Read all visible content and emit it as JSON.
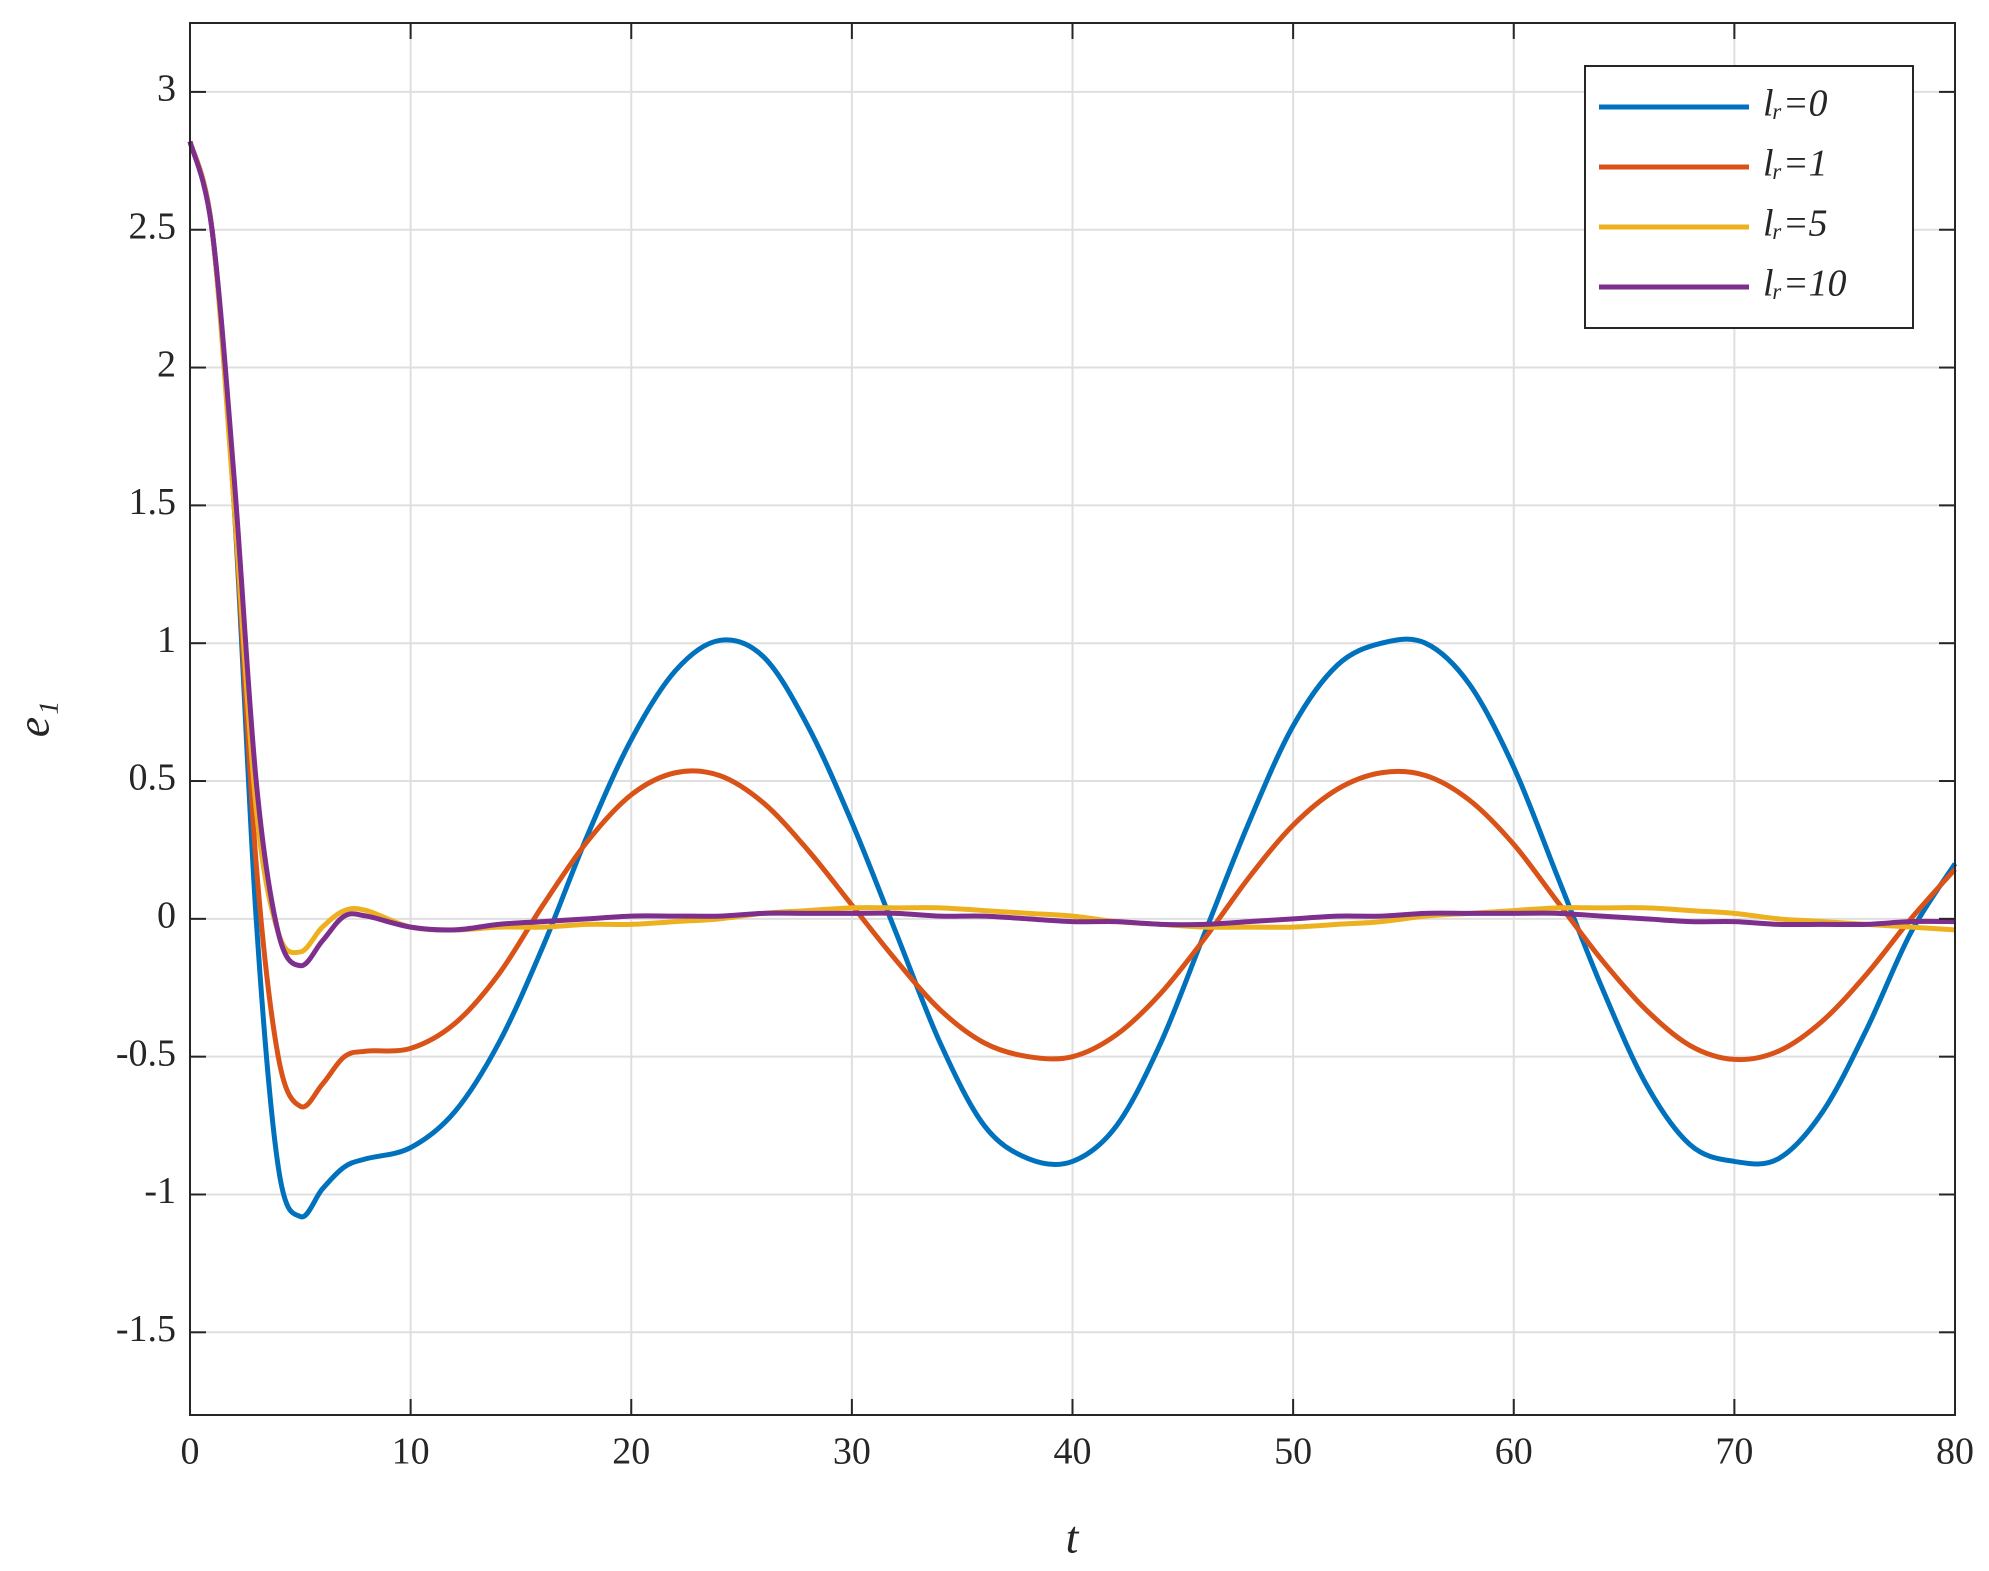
{
  "chart_data": {
    "type": "line",
    "xlabel": "t",
    "ylabel": "e₁",
    "x": [
      0,
      1,
      2,
      3,
      4,
      5,
      6,
      7,
      8,
      10,
      12,
      14,
      16,
      18,
      20,
      22,
      24,
      26,
      28,
      30,
      32,
      34,
      36,
      38,
      40,
      42,
      44,
      46,
      48,
      50,
      52,
      54,
      56,
      58,
      60,
      62,
      64,
      66,
      68,
      70,
      72,
      74,
      76,
      78,
      80
    ],
    "series": [
      {
        "name": "lᵣ=0",
        "color": "#0072bd",
        "values": [
          2.82,
          2.5,
          1.5,
          0.0,
          -0.9,
          -1.08,
          -0.98,
          -0.9,
          -0.87,
          -0.83,
          -0.7,
          -0.45,
          -0.1,
          0.3,
          0.65,
          0.9,
          1.01,
          0.95,
          0.7,
          0.35,
          -0.05,
          -0.45,
          -0.75,
          -0.87,
          -0.88,
          -0.75,
          -0.45,
          -0.05,
          0.35,
          0.7,
          0.92,
          1.0,
          1.0,
          0.85,
          0.55,
          0.15,
          -0.25,
          -0.6,
          -0.82,
          -0.88,
          -0.87,
          -0.7,
          -0.4,
          -0.05,
          0.2
        ]
      },
      {
        "name": "lᵣ=1",
        "color": "#d95319",
        "values": [
          2.82,
          2.5,
          1.5,
          0.2,
          -0.5,
          -0.68,
          -0.6,
          -0.5,
          -0.48,
          -0.47,
          -0.38,
          -0.2,
          0.05,
          0.28,
          0.45,
          0.53,
          0.52,
          0.42,
          0.25,
          0.05,
          -0.15,
          -0.33,
          -0.45,
          -0.5,
          -0.5,
          -0.42,
          -0.27,
          -0.07,
          0.15,
          0.34,
          0.47,
          0.53,
          0.52,
          0.43,
          0.27,
          0.06,
          -0.15,
          -0.33,
          -0.46,
          -0.51,
          -0.48,
          -0.37,
          -0.2,
          0.0,
          0.18
        ]
      },
      {
        "name": "lᵣ=5",
        "color": "#edb120",
        "values": [
          2.82,
          2.5,
          1.5,
          0.4,
          -0.05,
          -0.12,
          -0.03,
          0.03,
          0.03,
          -0.03,
          -0.04,
          -0.03,
          -0.03,
          -0.02,
          -0.02,
          -0.01,
          0.0,
          0.02,
          0.03,
          0.04,
          0.04,
          0.04,
          0.03,
          0.02,
          0.01,
          -0.01,
          -0.02,
          -0.03,
          -0.03,
          -0.03,
          -0.02,
          -0.01,
          0.01,
          0.02,
          0.03,
          0.04,
          0.04,
          0.04,
          0.03,
          0.02,
          0.0,
          -0.01,
          -0.02,
          -0.03,
          -0.04
        ]
      },
      {
        "name": "lᵣ=10",
        "color": "#7e2f8e",
        "values": [
          2.82,
          2.5,
          1.6,
          0.5,
          -0.05,
          -0.17,
          -0.08,
          0.01,
          0.01,
          -0.03,
          -0.04,
          -0.02,
          -0.01,
          0.0,
          0.01,
          0.01,
          0.01,
          0.02,
          0.02,
          0.02,
          0.02,
          0.01,
          0.01,
          0.0,
          -0.01,
          -0.01,
          -0.02,
          -0.02,
          -0.01,
          0.0,
          0.01,
          0.01,
          0.02,
          0.02,
          0.02,
          0.02,
          0.01,
          0.0,
          -0.01,
          -0.01,
          -0.02,
          -0.02,
          -0.02,
          -0.01,
          -0.01
        ]
      }
    ],
    "xlim": [
      0,
      80
    ],
    "xticks": [
      0,
      10,
      20,
      30,
      40,
      50,
      60,
      70,
      80
    ],
    "ylim": [
      -1.8,
      3.25
    ],
    "yticks": [
      -1.5,
      -1,
      -0.5,
      0,
      0.5,
      1,
      1.5,
      2,
      2.5,
      3
    ],
    "grid": true,
    "legend": "top-right"
  }
}
